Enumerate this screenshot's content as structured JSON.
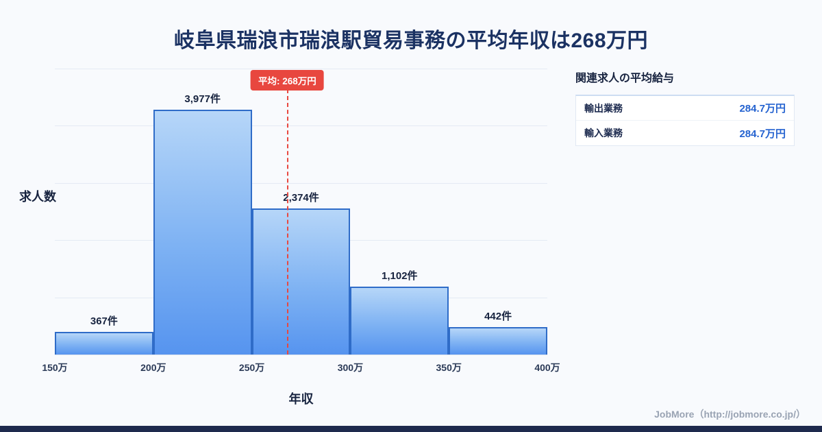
{
  "page": {
    "title": "岐阜県瑞浪市瑞浪駅貿易事務の平均年収は268万円",
    "footer": "JobMore（http://jobmore.co.jp/）"
  },
  "chart_data": {
    "type": "bar",
    "title": "岐阜県瑞浪市瑞浪駅貿易事務の平均年収は268万円",
    "xlabel": "年収",
    "ylabel": "求人数",
    "x_ticks": [
      "150万",
      "200万",
      "250万",
      "300万",
      "350万",
      "400万"
    ],
    "x_range": [
      150,
      400
    ],
    "bins": [
      [
        150,
        200
      ],
      [
        200,
        250
      ],
      [
        250,
        300
      ],
      [
        300,
        350
      ],
      [
        350,
        400
      ]
    ],
    "values": [
      367,
      3977,
      2374,
      1102,
      442
    ],
    "value_labels": [
      "367件",
      "3,977件",
      "2,374件",
      "1,102件",
      "442件"
    ],
    "ylim": [
      0,
      4650
    ],
    "grid": true,
    "legend": "none",
    "average": {
      "value": 268,
      "label": "平均: 268万円"
    }
  },
  "side_panel": {
    "heading": "関連求人の平均給与",
    "rows": [
      {
        "label": "輸出業務",
        "value": "284.7万円"
      },
      {
        "label": "輸入業務",
        "value": "284.7万円"
      }
    ]
  },
  "colors": {
    "background": "#f8fafd",
    "title_navy": "#1b3263",
    "bar_fill_top": "#b6d6f8",
    "bar_fill_bottom": "#5694ef",
    "bar_border": "#2f6cc8",
    "accent_red": "#e8473f",
    "value_blue": "#2563d0",
    "footer_gray": "#99a3b3",
    "bottom_bar_navy": "#1e2a4d"
  }
}
